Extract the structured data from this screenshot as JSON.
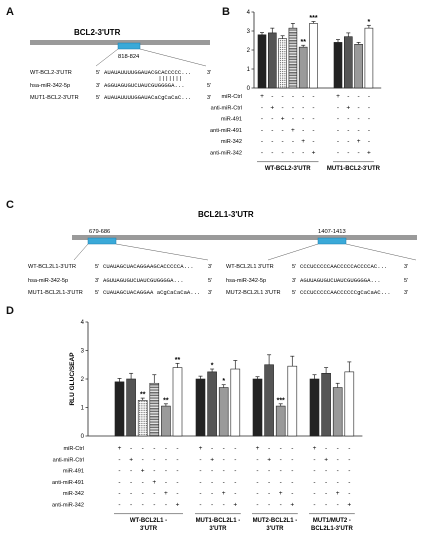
{
  "panels": {
    "a": "A",
    "b": "B",
    "c": "C",
    "d": "D"
  },
  "panel_a": {
    "title": "BCL2-3'UTR",
    "site": "818-824",
    "rows": [
      {
        "label": "WT-BCL2-3'UTR",
        "five": "5'",
        "seq": "AUAUAUUUUGGAUACGCACCCCC...",
        "three": "3'"
      },
      {
        "label": "hsa-miR-342-5p",
        "five": "3'",
        "seq": "AGGUAGUGUCUAUCGUGGGGA...",
        "three": "5'"
      },
      {
        "label": "MUT1-BCL2-3'UTR",
        "five": "5'",
        "seq": "AUAUAUUUUGGAUACaCgCaCaC...",
        "three": "3'"
      }
    ]
  },
  "panel_c": {
    "title": "BCL2L1-3'UTR",
    "site1": "679-686",
    "site2": "1407-1413",
    "left_rows": [
      {
        "label": "WT-BCL2L1-3'UTR",
        "five": "5'",
        "seq": "CUAUAGCUACAGGAAGCACCCCCA...",
        "three": "3'"
      },
      {
        "label": "hsa-miR-342-5p",
        "five": "3'",
        "seq": "AGUUAGUGUCUAUCGUGGGGA...",
        "three": "5'"
      },
      {
        "label": "MUT1-BCL2L1-3'UTR",
        "five": "5'",
        "seq": "CUAUAGCUACAGGAA aCgCaCaCaA...",
        "three": "3'"
      }
    ],
    "right_rows": [
      {
        "label": "WT-BCL2L1 3'UTR",
        "five": "5'",
        "seq": "CCCUCCCCCAACCCCCACCCCAC...",
        "three": "3'"
      },
      {
        "label": "hsa-miR-342-5p",
        "five": "3'",
        "seq": "AGUUAGUGUCUAUCGUGGGGA...",
        "three": "5'"
      },
      {
        "label": "MUT2-BCL2L1 3'UTR",
        "five": "5'",
        "seq": "CCCUCCCCCAACCCCCCgCaCaAC...",
        "three": "3'"
      }
    ]
  },
  "treatment_labels": [
    "miR-Ctrl",
    "anti-miR-Ctrl",
    "miR-491",
    "anti-miR-491",
    "miR-342",
    "anti-miR-342"
  ],
  "chart_data": [
    {
      "type": "bar",
      "panel": "B",
      "ylabel": "",
      "ylim": [
        0,
        4
      ],
      "yticks": [
        0,
        1,
        2,
        3,
        4
      ],
      "groups": [
        {
          "name": "WT-BCL2-3'UTR",
          "values": [
            2.8,
            2.9,
            2.6,
            3.15,
            2.15,
            3.4
          ],
          "errors": [
            0.12,
            0.25,
            0.15,
            0.25,
            0.1,
            0.1
          ],
          "sig": [
            "",
            "",
            "",
            "",
            "**",
            "***"
          ],
          "patterns": [
            "black",
            "dark",
            "dots",
            "stripes",
            "gray",
            "white"
          ],
          "treatments": [
            [
              1,
              0,
              0,
              0,
              0,
              0
            ],
            [
              0,
              1,
              0,
              0,
              0,
              0
            ],
            [
              0,
              0,
              1,
              0,
              0,
              0
            ],
            [
              0,
              0,
              0,
              1,
              0,
              0
            ],
            [
              0,
              0,
              0,
              0,
              1,
              0
            ],
            [
              0,
              0,
              0,
              0,
              0,
              1
            ]
          ]
        },
        {
          "name": "MUT1-BCL2-3'UTR",
          "values": [
            2.4,
            2.7,
            2.3,
            3.15
          ],
          "errors": [
            0.15,
            0.2,
            0.1,
            0.15
          ],
          "sig": [
            "",
            "",
            "",
            "*"
          ],
          "patterns": [
            "black",
            "dark",
            "gray",
            "white"
          ],
          "treatments": [
            [
              1,
              0,
              0,
              0,
              0,
              0
            ],
            [
              0,
              1,
              0,
              0,
              0,
              0
            ],
            [
              0,
              0,
              0,
              0,
              1,
              0
            ],
            [
              0,
              0,
              0,
              0,
              0,
              1
            ]
          ]
        }
      ]
    },
    {
      "type": "bar",
      "panel": "D",
      "ylabel": "RLU GLUC/SEAP",
      "ylim": [
        0,
        4
      ],
      "yticks": [
        0,
        1,
        2,
        3,
        4
      ],
      "groups": [
        {
          "name": "WT-BCL2L1 - 3'UTR",
          "values": [
            1.9,
            2.0,
            1.25,
            1.85,
            1.05,
            2.4
          ],
          "errors": [
            0.12,
            0.2,
            0.08,
            0.3,
            0.08,
            0.15
          ],
          "sig": [
            "",
            "",
            "**",
            "",
            "**",
            "**"
          ],
          "patterns": [
            "black",
            "dark",
            "dots",
            "stripes",
            "gray",
            "white"
          ],
          "treatments": [
            [
              1,
              0,
              0,
              0,
              0,
              0
            ],
            [
              0,
              1,
              0,
              0,
              0,
              0
            ],
            [
              0,
              0,
              1,
              0,
              0,
              0
            ],
            [
              0,
              0,
              0,
              1,
              0,
              0
            ],
            [
              0,
              0,
              0,
              0,
              1,
              0
            ],
            [
              0,
              0,
              0,
              0,
              0,
              1
            ]
          ]
        },
        {
          "name": "MUT1-BCL2L1 - 3'UTR",
          "values": [
            2.0,
            2.25,
            1.7,
            2.35
          ],
          "errors": [
            0.1,
            0.1,
            0.1,
            0.3
          ],
          "sig": [
            "",
            "*",
            "*",
            ""
          ],
          "patterns": [
            "black",
            "dark",
            "gray",
            "white"
          ],
          "treatments": [
            [
              1,
              0,
              0,
              0,
              0,
              0
            ],
            [
              0,
              1,
              0,
              0,
              0,
              0
            ],
            [
              0,
              0,
              0,
              0,
              1,
              0
            ],
            [
              0,
              0,
              0,
              0,
              0,
              1
            ]
          ]
        },
        {
          "name": "MUT2-BCL2L1 - 3'UTR",
          "values": [
            2.0,
            2.5,
            1.05,
            2.45
          ],
          "errors": [
            0.08,
            0.35,
            0.08,
            0.35
          ],
          "sig": [
            "",
            "",
            "***",
            ""
          ],
          "patterns": [
            "black",
            "dark",
            "gray",
            "white"
          ],
          "treatments": [
            [
              1,
              0,
              0,
              0,
              0,
              0
            ],
            [
              0,
              1,
              0,
              0,
              0,
              0
            ],
            [
              0,
              0,
              0,
              0,
              1,
              0
            ],
            [
              0,
              0,
              0,
              0,
              0,
              1
            ]
          ]
        },
        {
          "name": "MUT1/MUT2 - BCL2L1-3'UTR",
          "values": [
            2.0,
            2.2,
            1.7,
            2.25
          ],
          "errors": [
            0.15,
            0.2,
            0.15,
            0.35
          ],
          "sig": [
            "",
            "",
            "",
            ""
          ],
          "patterns": [
            "black",
            "dark",
            "gray",
            "white"
          ],
          "treatments": [
            [
              1,
              0,
              0,
              0,
              0,
              0
            ],
            [
              0,
              1,
              0,
              0,
              0,
              0
            ],
            [
              0,
              0,
              0,
              0,
              1,
              0
            ],
            [
              0,
              0,
              0,
              0,
              0,
              1
            ]
          ]
        }
      ]
    }
  ],
  "colors": {
    "black": "#222222",
    "dark": "#555555",
    "gray": "#9a9a9a",
    "white": "#ffffff",
    "utr_bar": "#9a9a9a",
    "site": "#3aa9d8",
    "red": "#e0201b"
  }
}
